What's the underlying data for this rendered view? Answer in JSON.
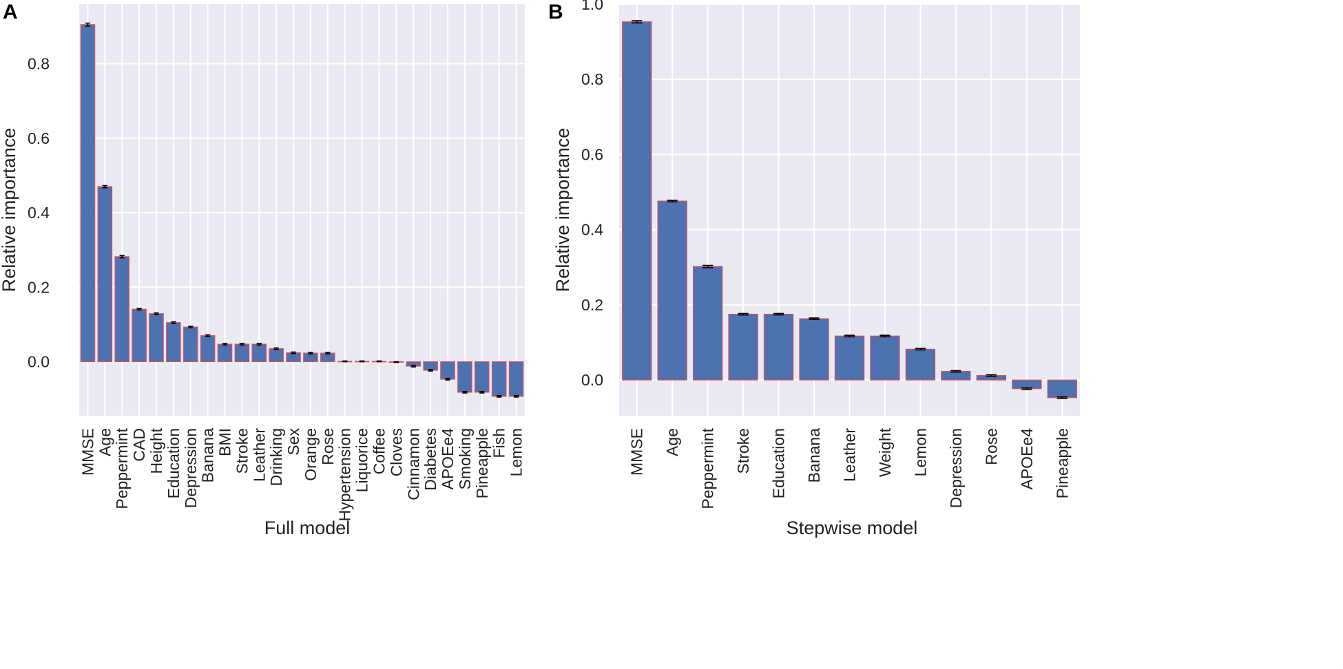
{
  "chart_data": [
    {
      "panel": "A",
      "type": "bar",
      "title": "",
      "xlabel": "Full model",
      "ylabel": "Relative importance",
      "ylim": [
        -0.145,
        0.96
      ],
      "yticks": [
        0.0,
        0.2,
        0.4,
        0.6,
        0.8
      ],
      "ytick_labels": [
        "0.0",
        "0.2",
        "0.4",
        "0.6",
        "0.8"
      ],
      "grid": true,
      "categories": [
        "MMSE",
        "Age",
        "Peppermint",
        "CAD",
        "Height",
        "Education",
        "Depression",
        "Banana",
        "BMI",
        "Stroke",
        "Leather",
        "Drinking",
        "Sex",
        "Orange",
        "Rose",
        "Hypertension",
        "Liquorice",
        "Coffee",
        "Cloves",
        "Cinnamon",
        "Diabetes",
        "APOEe4",
        "Smoking",
        "Pineapple",
        "Fish",
        "Lemon"
      ],
      "values": [
        0.905,
        0.47,
        0.282,
        0.141,
        0.129,
        0.105,
        0.093,
        0.07,
        0.047,
        0.047,
        0.047,
        0.035,
        0.024,
        0.023,
        0.023,
        0.001,
        0.001,
        0.001,
        -0.001,
        -0.012,
        -0.023,
        -0.047,
        -0.082,
        -0.082,
        -0.093,
        -0.093
      ],
      "errors": [
        0.004,
        0.003,
        0.003,
        0.002,
        0.002,
        0.002,
        0.002,
        0.002,
        0.002,
        0.002,
        0.002,
        0.002,
        0.002,
        0.002,
        0.002,
        0.001,
        0.001,
        0.001,
        0.001,
        0.002,
        0.002,
        0.002,
        0.002,
        0.002,
        0.002,
        0.002
      ]
    },
    {
      "panel": "B",
      "type": "bar",
      "title": "",
      "xlabel": "Stepwise model",
      "ylabel": "Relative importance",
      "ylim": [
        -0.095,
        1.0
      ],
      "yticks": [
        0.0,
        0.2,
        0.4,
        0.6,
        0.8,
        1.0
      ],
      "ytick_labels": [
        "0.0",
        "0.2",
        "0.4",
        "0.6",
        "0.8",
        "1.0"
      ],
      "grid": true,
      "categories": [
        "MMSE",
        "Age",
        "Peppermint",
        "Stroke",
        "Education",
        "Banana",
        "Leather",
        "Weight",
        "Lemon",
        "Depression",
        "Rose",
        "APOEe4",
        "Pineapple"
      ],
      "values": [
        0.953,
        0.476,
        0.302,
        0.175,
        0.175,
        0.163,
        0.117,
        0.117,
        0.082,
        0.023,
        0.012,
        -0.023,
        -0.047
      ],
      "errors": [
        0.003,
        0.002,
        0.003,
        0.002,
        0.002,
        0.002,
        0.002,
        0.002,
        0.002,
        0.002,
        0.002,
        0.002,
        0.002
      ]
    }
  ],
  "colors": {
    "background": "#eaeaf2",
    "grid": "#ffffff",
    "bar_fill": "#4c72b0",
    "bar_edge": "#e0505a",
    "error_bar": "#000000"
  }
}
